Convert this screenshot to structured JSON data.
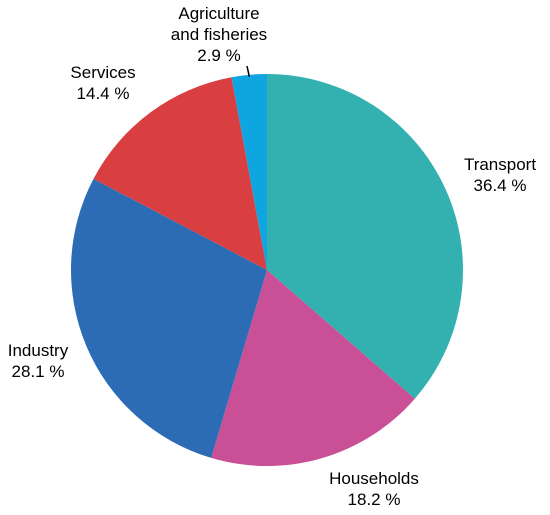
{
  "chart_data": {
    "type": "pie",
    "start_angle_deg": 0,
    "direction": "clockwise",
    "slices": [
      {
        "name": "Transport",
        "label_lines": [
          "Transport"
        ],
        "value_text": "36.4 %",
        "value": 36.4,
        "color": "#33b0b0"
      },
      {
        "name": "Households",
        "label_lines": [
          "Households"
        ],
        "value_text": "18.2 %",
        "value": 18.2,
        "color": "#c94f97"
      },
      {
        "name": "Industry",
        "label_lines": [
          "Industry"
        ],
        "value_text": "28.1 %",
        "value": 28.1,
        "color": "#2b6cb5"
      },
      {
        "name": "Services",
        "label_lines": [
          "Services"
        ],
        "value_text": "14.4 %",
        "value": 14.4,
        "color": "#d93e40"
      },
      {
        "name": "Agriculture and fisheries",
        "label_lines": [
          "Agriculture",
          "and fisheries"
        ],
        "value_text": "2.9 %",
        "value": 2.9,
        "color": "#0fa5e0"
      }
    ],
    "legend": "none",
    "title": ""
  }
}
